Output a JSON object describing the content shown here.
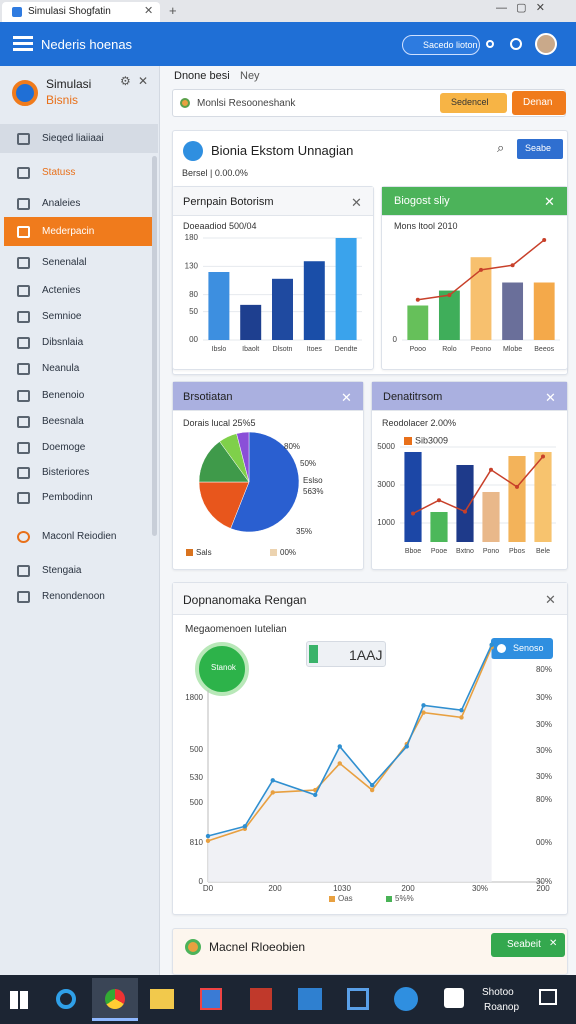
{
  "browser": {
    "tab_title": "Simulasi Shogfatin"
  },
  "header": {
    "title": "Nederis hoenas",
    "button": "Sacedo lioton"
  },
  "sidebar": {
    "brand_line1": "Simulasi",
    "brand_line2": "Bisnis",
    "items": [
      "Sieqed liaiiaai",
      "Statuss",
      "Analeies",
      "Mederpacin",
      "Senenalal",
      "Actenies",
      "Semnioe",
      "Dibsnlaia",
      "Neanula",
      "Benenoio",
      "Beesnala",
      "Doemoge",
      "Bisteriores",
      "Pembodinn",
      "Maconl Reiodien",
      "Stengaia",
      "Renondenoon"
    ]
  },
  "toolbar": {
    "crumb": "Dnone besi",
    "crumb2": "Ney",
    "search": "Monlsi Resooneshank",
    "button1": "Sedencel",
    "button2": "Denan"
  },
  "dashboard": {
    "title": "Bionia Ekstom Unnagian",
    "button": "Seabe",
    "subtitle": "Bersel | 0.00.0%"
  },
  "chart_data": [
    {
      "type": "bar",
      "title": "Pernpain Botorism",
      "subtitle": "Doeaadiod 500/04",
      "categories": [
        "Ibslo",
        "Ibaolt",
        "Dlsotn",
        "Itoes",
        "Dendte"
      ],
      "values": [
        120,
        62,
        108,
        139,
        180
      ],
      "colors": [
        "#3d8fe0",
        "#1e3f8f",
        "#1f4aa0",
        "#1a4ea8",
        "#3aa3ec"
      ],
      "ylim": [
        0,
        180
      ],
      "yticks": [
        {
          "value": 0,
          "label": "00"
        },
        50,
        80,
        130,
        180
      ]
    },
    {
      "type": "bar",
      "title": "Biogost sliy",
      "subtitle": "Mons ltool 2010",
      "categories": [
        "Pooo",
        "Rolo",
        "Peono",
        "Mlobe",
        "Beeos"
      ],
      "values": [
        30,
        43,
        72,
        50,
        50
      ],
      "colors": [
        "#66c05a",
        "#3fae5a",
        "#f7c06e",
        "#6a6f9a",
        "#f4a94a"
      ],
      "line_values": [
        35,
        39,
        61,
        65,
        87
      ],
      "line_color": "#c8402a",
      "ylim": [
        0,
        100
      ],
      "yticks": [
        0
      ]
    },
    {
      "type": "pie",
      "title": "Brsotiatan",
      "subtitle": "Dorais lucal 25%5",
      "values": [
        56,
        19,
        15,
        6,
        4
      ],
      "colors": [
        "#2a5fd0",
        "#e8561c",
        "#3f9a4a",
        "#7fd04a",
        "#8a4fd8"
      ],
      "annotations": [
        "80%",
        "50%",
        "Eslso",
        "563%",
        "35%"
      ],
      "legend": [
        {
          "name": "Sals",
          "color": "#d9731f"
        },
        {
          "name": "00%",
          "color": "#ecd3b0"
        }
      ]
    },
    {
      "type": "bar",
      "title": "Denatitrsom",
      "subtitle": "Reodolacer 2.00%",
      "legend_label": "Sib3009",
      "legend_color": "#e8701a",
      "categories": [
        "Bboe",
        "Pooe",
        "Bxtno",
        "Pono",
        "Pbos",
        "Bele"
      ],
      "values": [
        4737,
        1579,
        4053,
        2632,
        4526,
        4737
      ],
      "colors": [
        "#1c47a6",
        "#4cb85a",
        "#1e3a8a",
        "#e9b88a",
        "#f3b35a",
        "#f7c36e"
      ],
      "line_values": [
        1500,
        2200,
        1600,
        3800,
        2900,
        4500
      ],
      "line_color": "#c8402a",
      "ylim": [
        0,
        5000
      ],
      "yticks": [
        1000,
        3000,
        5000
      ]
    },
    {
      "type": "line",
      "title": "Dopnanomaka Rengan",
      "subtitle": "Megaomenoen Iutelian",
      "badge": "Stanok",
      "value_box": "1AAJ",
      "callout": "Senoso",
      "x": [
        0,
        33,
        58,
        96,
        118,
        147,
        178,
        193,
        227,
        254
      ],
      "xlim": [
        0,
        300
      ],
      "ylim": [
        0,
        100
      ],
      "series": [
        {
          "color": "#2f8fd0",
          "values": [
            19,
            23,
            42,
            36,
            56,
            40,
            56,
            73,
            71,
            98
          ]
        },
        {
          "color": "#e8a040",
          "values": [
            17,
            22,
            37,
            38,
            49,
            38,
            57,
            70,
            68,
            97
          ]
        }
      ],
      "x_labels": [
        "D0",
        "200",
        "1030",
        "200",
        "30%",
        "200"
      ],
      "left_labels": [
        "1800",
        "500",
        "530",
        "500",
        "810",
        "0"
      ],
      "right_labels": [
        "80%",
        "30%",
        "30%",
        "30%",
        "30%",
        "80%",
        "00%",
        "30%"
      ],
      "legend": [
        {
          "name": "Oas",
          "color": "#e8a040"
        },
        {
          "name": "5%%",
          "color": "#49b356"
        }
      ]
    }
  ],
  "bottom_card": {
    "title": "Macnel Rloeobien",
    "button": "Seabeit"
  },
  "taskbar": {
    "clock_line1": "Shotoo",
    "clock_line2": "Roanop"
  }
}
